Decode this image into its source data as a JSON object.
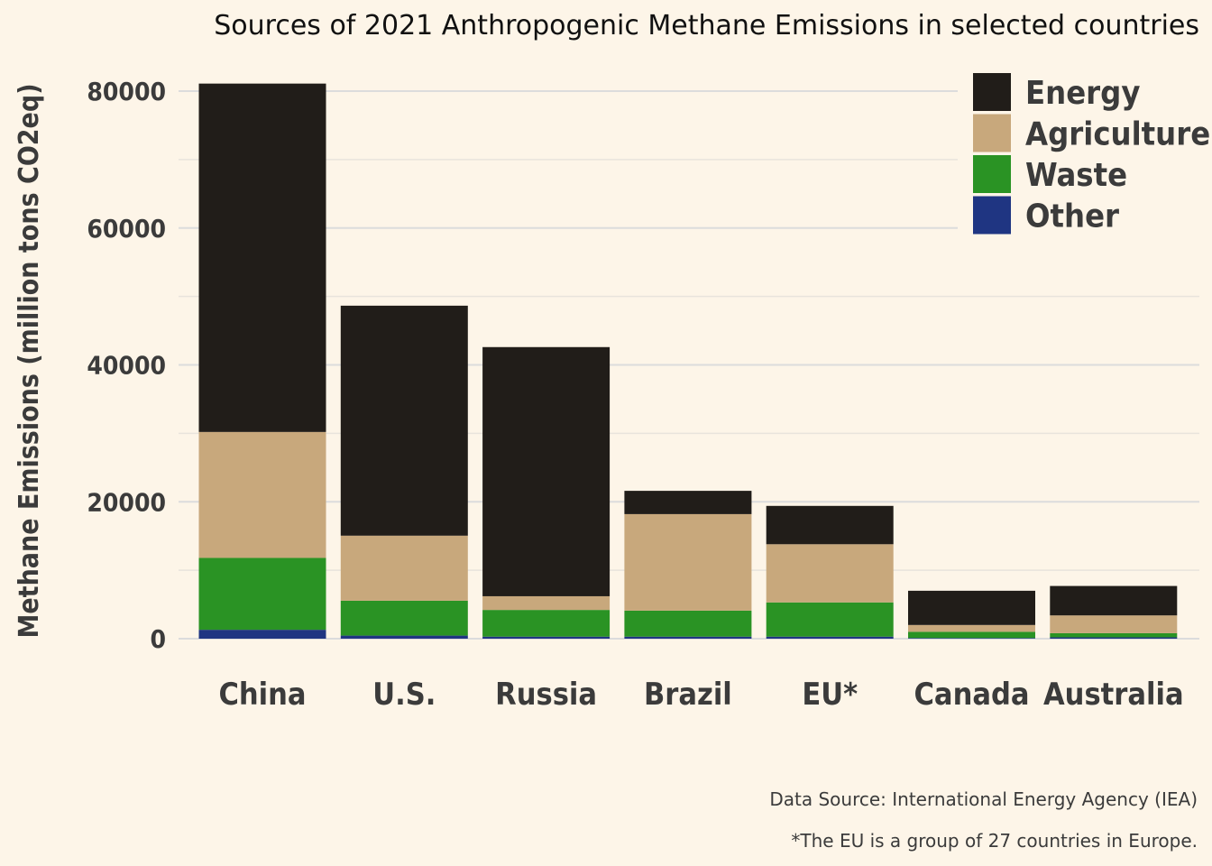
{
  "chart_data": {
    "type": "bar",
    "stacked": true,
    "title": "Sources of 2021 Anthropogenic Methane Emissions in selected countries",
    "ylabel": "Methane Emissions (million tons CO2eq)",
    "xlabel": "",
    "ylim": [
      0,
      82000
    ],
    "yticks": [
      0,
      20000,
      40000,
      60000,
      80000
    ],
    "grid": true,
    "legend_position": "top-right",
    "categories": [
      "China",
      "U.S.",
      "Russia",
      "Brazil",
      "EU*",
      "Canada",
      "Australia"
    ],
    "series": [
      {
        "name": "Other",
        "color": "#1f3582",
        "values": [
          1300,
          450,
          300,
          300,
          300,
          100,
          200
        ]
      },
      {
        "name": "Waste",
        "color": "#2a9324",
        "values": [
          10500,
          5100,
          3900,
          3800,
          5000,
          900,
          600
        ]
      },
      {
        "name": "Agriculture",
        "color": "#c8a87c",
        "values": [
          18400,
          9500,
          2000,
          14100,
          8500,
          1000,
          2600
        ]
      },
      {
        "name": "Energy",
        "color": "#211d19",
        "values": [
          50900,
          33600,
          36400,
          3400,
          5600,
          5000,
          4300
        ]
      }
    ],
    "legend_order": [
      "Energy",
      "Agriculture",
      "Waste",
      "Other"
    ],
    "captions": [
      "Data Source: International Energy Agency (IEA)",
      "*The EU is a group of 27 countries in Europe."
    ]
  }
}
